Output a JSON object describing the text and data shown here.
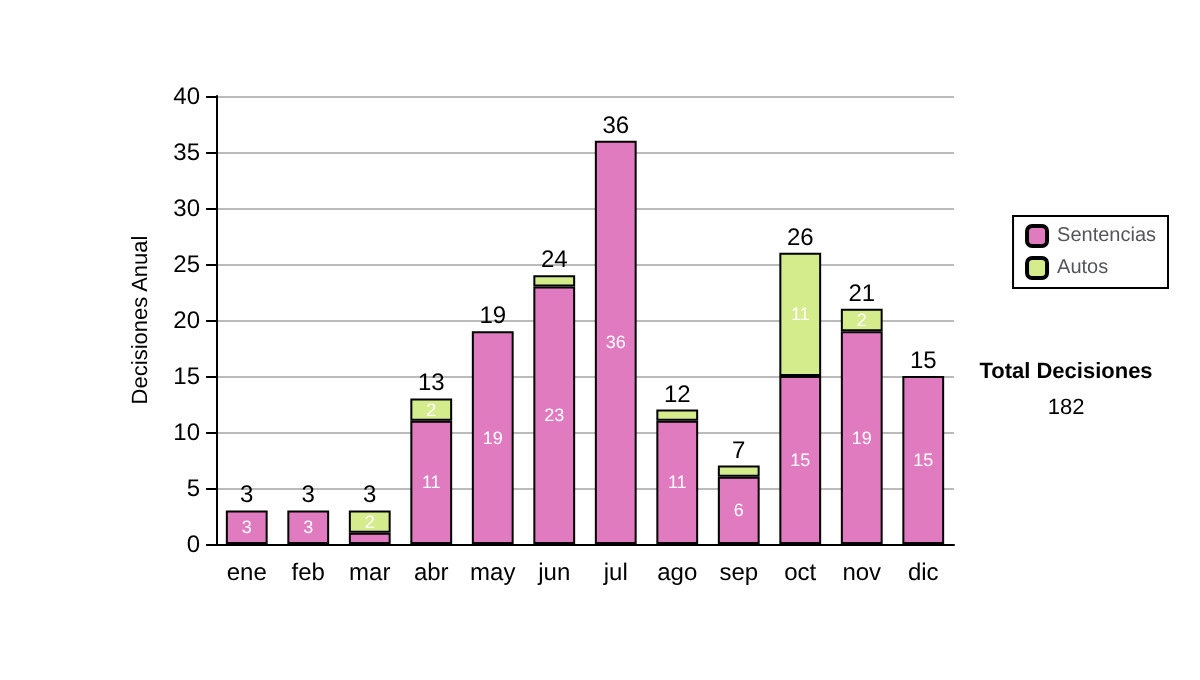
{
  "chart_data": {
    "type": "bar",
    "stacked": true,
    "ylabel": "Decisiones Anual",
    "categories": [
      "ene",
      "feb",
      "mar",
      "abr",
      "may",
      "jun",
      "jul",
      "ago",
      "sep",
      "oct",
      "nov",
      "dic"
    ],
    "series": [
      {
        "name": "Sentencias",
        "color": "#e07bc0",
        "values": [
          3,
          3,
          1,
          11,
          19,
          23,
          36,
          11,
          6,
          15,
          19,
          15
        ],
        "value_labels": [
          "3",
          "3",
          null,
          "11",
          "19",
          "23",
          "36",
          "11",
          "6",
          "15",
          "19",
          "15"
        ]
      },
      {
        "name": "Autos",
        "color": "#d4ec8c",
        "values": [
          null,
          null,
          2,
          2,
          null,
          1,
          null,
          1,
          1,
          11,
          2,
          null
        ],
        "value_labels": [
          null,
          null,
          "2",
          "2",
          null,
          null,
          null,
          null,
          null,
          "11",
          "2",
          null
        ]
      }
    ],
    "totals": [
      "3",
      "3",
      "3",
      "13",
      "19",
      "24",
      "36",
      "12",
      "7",
      "26",
      "21",
      "15"
    ],
    "ylim": [
      0,
      40
    ],
    "yticks": [
      0,
      5,
      10,
      15,
      20,
      25,
      30,
      35,
      40
    ],
    "grid": "y",
    "legend": "right",
    "annotations": [
      "Total Decisiones",
      "182"
    ]
  }
}
